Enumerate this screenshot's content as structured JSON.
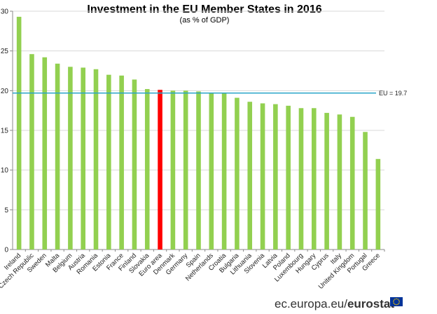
{
  "chart_data": {
    "type": "bar",
    "title": "Investment in the EU Member States in 2016",
    "subtitle": "(as % of GDP)",
    "xlabel": "",
    "ylabel": "",
    "ylim": [
      0,
      30
    ],
    "yticks": [
      0,
      5,
      10,
      15,
      20,
      25,
      30
    ],
    "grid": true,
    "categories": [
      "Ireland",
      "Czech Republic",
      "Sweden",
      "Malta",
      "Belgium",
      "Austria",
      "Romania",
      "Estonia",
      "France",
      "Finland",
      "Slovakia",
      "Euro area",
      "Denmark",
      "Germany",
      "Spain",
      "Netherlands",
      "Croatia",
      "Bulgaria",
      "Lithuania",
      "Slovenia",
      "Latvia",
      "Poland",
      "Luxembourg",
      "Hungary",
      "Cyprus",
      "Italy",
      "United Kingdom",
      "Portugal",
      "Greece"
    ],
    "values": [
      29.3,
      24.6,
      24.2,
      23.4,
      23.0,
      22.9,
      22.7,
      22.0,
      21.9,
      21.4,
      20.2,
      20.1,
      20.0,
      20.0,
      19.9,
      19.7,
      19.7,
      19.1,
      18.6,
      18.4,
      18.3,
      18.1,
      17.8,
      17.8,
      17.2,
      17.0,
      16.7,
      14.8,
      11.4
    ],
    "highlight": "Euro area",
    "reference_line": {
      "label": "EU = 19.7",
      "value": 19.7
    }
  },
  "colors": {
    "bar": "#92d050",
    "highlight": "#ff0000",
    "reference": "#2aa5c8",
    "grid": "#d9d9d9",
    "axis": "#888888"
  },
  "footer": {
    "site": "ec.europa.eu/",
    "brand": "eurostat",
    "logo": "eu-flag-icon"
  }
}
